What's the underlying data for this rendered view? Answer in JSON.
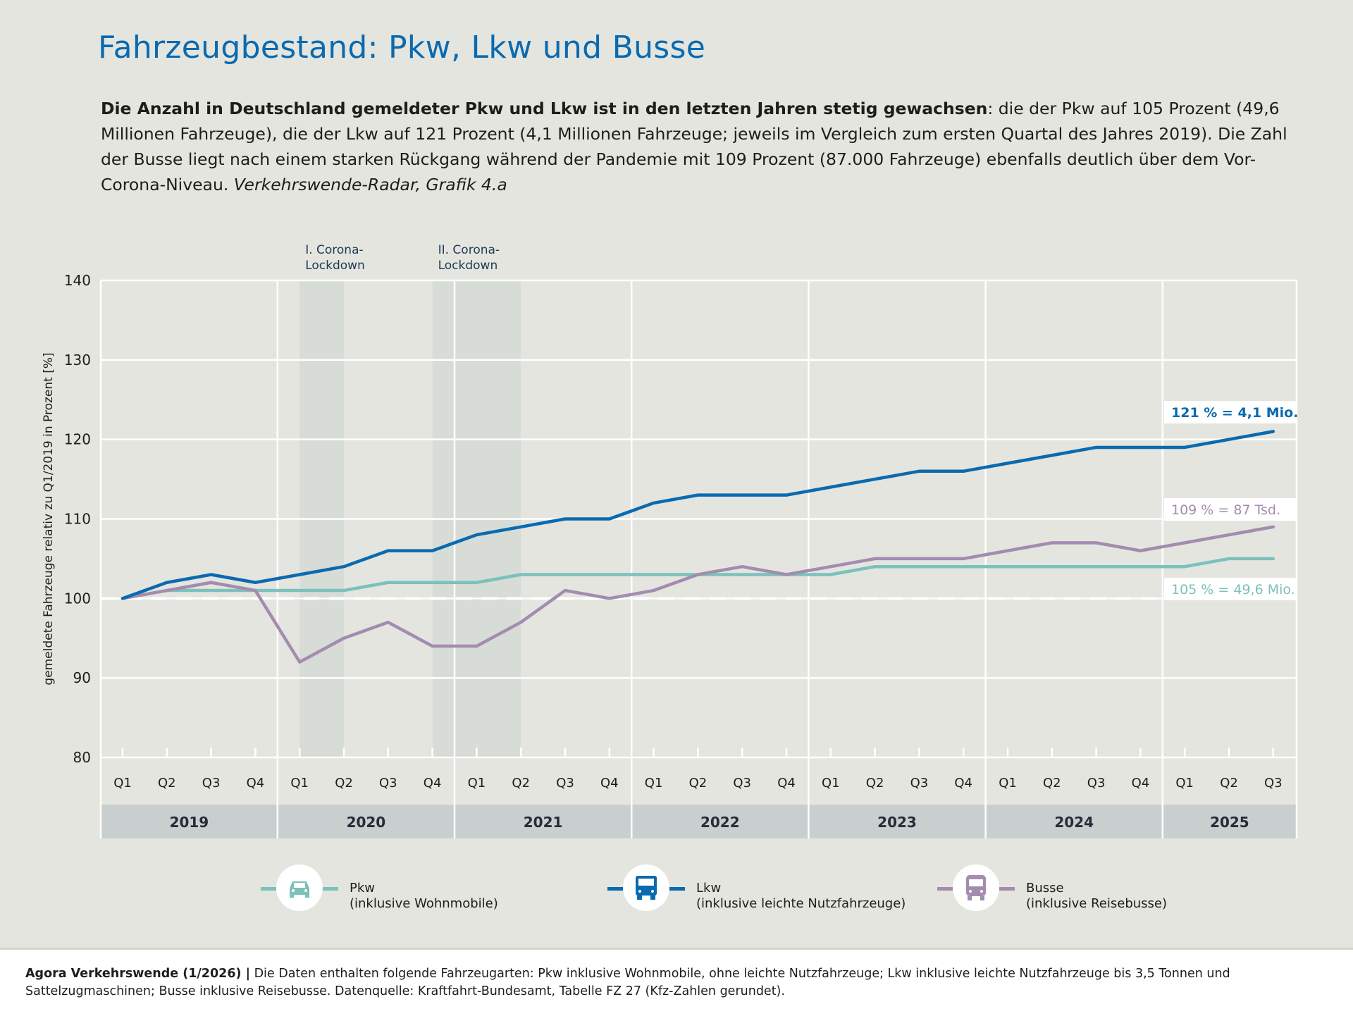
{
  "header": {
    "title": "Fahrzeugbestand: Pkw, Lkw und Busse",
    "intro_bold": "Die Anzahl in Deutschland gemeldeter Pkw und Lkw ist in den letzten Jahren stetig gewachsen",
    "intro_text": ": die der Pkw auf 105 Prozent (49,6 Millionen Fahrzeuge), die der Lkw auf 121 Prozent (4,1 Millionen Fahrzeuge; jeweils im Vergleich zum ersten Quartal des Jahres 2019). Die Zahl der Busse liegt nach einem starken Rückgang während der Pandemie mit 109 Prozent (87.000 Fahrzeuge) ebenfalls deutlich über dem Vor-Corona-Niveau. ",
    "intro_source": "Verkehrswende-Radar, Grafik 4.a"
  },
  "chart_data": {
    "type": "line",
    "ylabel": "gemeldete Fahrzeuge relativ zu Q1/2019 in Prozent [%]",
    "ylim": [
      80,
      140
    ],
    "yticks": [
      80,
      90,
      100,
      110,
      120,
      130,
      140
    ],
    "grid": true,
    "reference_line": 100,
    "x": [
      "Q1",
      "Q2",
      "Q3",
      "Q4",
      "Q1",
      "Q2",
      "Q3",
      "Q4",
      "Q1",
      "Q2",
      "Q3",
      "Q4",
      "Q1",
      "Q2",
      "Q3",
      "Q4",
      "Q1",
      "Q2",
      "Q3",
      "Q4",
      "Q1",
      "Q2",
      "Q3",
      "Q4",
      "Q1",
      "Q2",
      "Q3"
    ],
    "years": [
      {
        "label": "2019",
        "quarters": 4
      },
      {
        "label": "2020",
        "quarters": 4
      },
      {
        "label": "2021",
        "quarters": 4
      },
      {
        "label": "2022",
        "quarters": 4
      },
      {
        "label": "2023",
        "quarters": 4
      },
      {
        "label": "2024",
        "quarters": 4
      },
      {
        "label": "2025",
        "quarters": 3
      }
    ],
    "shaded_periods": [
      {
        "label": [
          "I. Corona-",
          "Lockdown"
        ],
        "from": 4,
        "to": 5
      },
      {
        "label": [
          "II. Corona-",
          "Lockdown"
        ],
        "from": 7,
        "to": 9
      }
    ],
    "series": [
      {
        "name": "Pkw",
        "color": "#7cc1bb",
        "values": [
          100,
          101,
          101,
          101,
          101,
          101,
          102,
          102,
          102,
          103,
          103,
          103,
          103,
          103,
          103,
          103,
          103,
          104,
          104,
          104,
          104,
          104,
          104,
          104,
          104,
          105,
          105
        ],
        "end_label": "105 % = 49,6 Mio."
      },
      {
        "name": "Lkw",
        "color": "#0a6ab0",
        "values": [
          100,
          102,
          103,
          102,
          103,
          104,
          106,
          106,
          108,
          109,
          110,
          110,
          112,
          113,
          113,
          113,
          114,
          115,
          116,
          116,
          117,
          118,
          119,
          119,
          119,
          120,
          121
        ],
        "end_label": "121 % = 4,1 Mio."
      },
      {
        "name": "Busse",
        "color": "#a38cb0",
        "values": [
          100,
          101,
          102,
          101,
          92,
          95,
          97,
          94,
          94,
          97,
          101,
          100,
          101,
          103,
          104,
          103,
          104,
          105,
          105,
          105,
          106,
          107,
          107,
          106,
          107,
          108,
          109
        ],
        "end_label": "109 % = 87 Tsd."
      }
    ]
  },
  "legend": [
    {
      "name": "Pkw",
      "sub": "(inklusive Wohnmobile)",
      "icon": "car-icon",
      "color": "#7cc1bb"
    },
    {
      "name": "Lkw",
      "sub": "(inklusive leichte Nutzfahrzeuge)",
      "icon": "truck-icon",
      "color": "#0a6ab0"
    },
    {
      "name": "Busse",
      "sub": "(inklusive Reisebusse)",
      "icon": "bus-icon",
      "color": "#a38cb0"
    }
  ],
  "footer": {
    "bold": "Agora Verkehrswende (1/2026) |",
    "text": " Die Daten enthalten folgende Fahrzeugarten: Pkw inklusive Wohnmobile, ohne leichte Nutzfahrzeuge; Lkw inklusive leichte Nutzfahrzeuge bis 3,5 Tonnen und Sattelzugmaschinen; Busse inklusive Reisebusse. Datenquelle: Kraftfahrt-Bundesamt, Tabelle FZ 27 (Kfz-Zahlen gerundet)."
  }
}
